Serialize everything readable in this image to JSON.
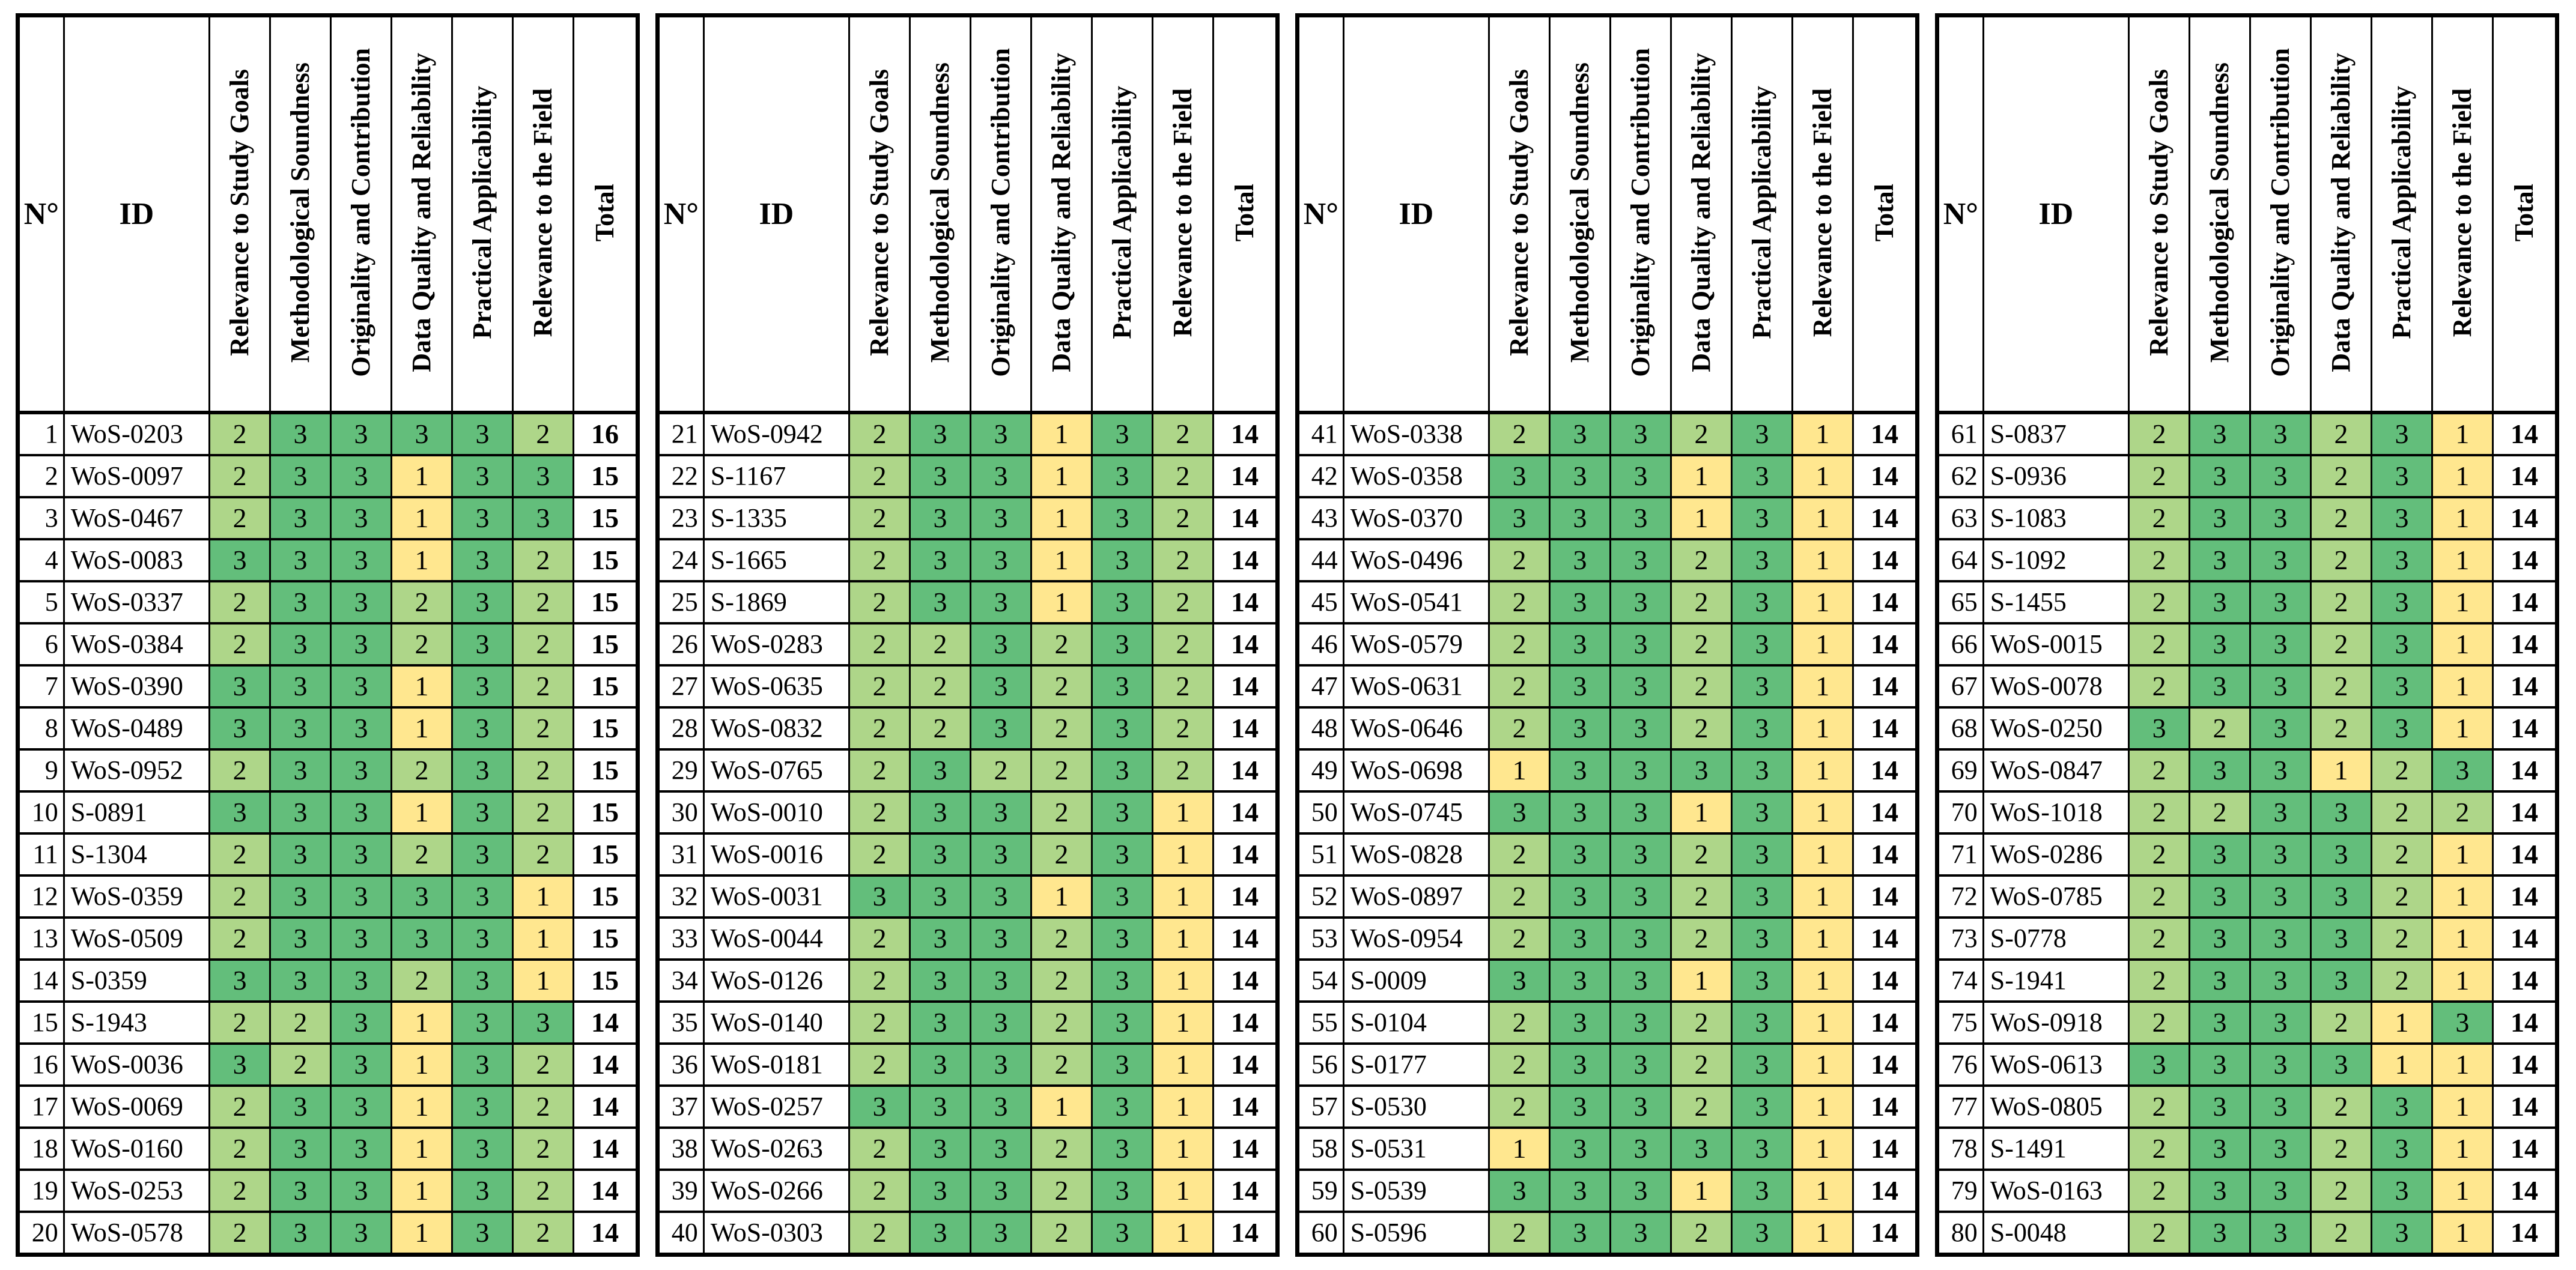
{
  "columns": [
    {
      "key": "n",
      "label": "N°"
    },
    {
      "key": "id",
      "label": "ID"
    },
    {
      "key": "relevance-study-goals",
      "label": "Relevance to Study Goals"
    },
    {
      "key": "methodological-soundness",
      "label": "Methodological Soundness"
    },
    {
      "key": "originality-contribution",
      "label": "Originality and Contribution"
    },
    {
      "key": "data-quality-reliability",
      "label": "Data Quality and Reliability"
    },
    {
      "key": "practical-applicability",
      "label": "Practical Applicability"
    },
    {
      "key": "relevance-field",
      "label": "Relevance to the Field"
    },
    {
      "key": "total",
      "label": "Total"
    }
  ],
  "score_colors": {
    "1": "#FFE78F",
    "2": "#AED689",
    "3": "#63BE7B"
  },
  "tables": [
    {
      "rows": [
        {
          "n": 1,
          "id": "WoS-0203",
          "scores": [
            2,
            3,
            3,
            3,
            3,
            2
          ],
          "total": 16
        },
        {
          "n": 2,
          "id": "WoS-0097",
          "scores": [
            2,
            3,
            3,
            1,
            3,
            3
          ],
          "total": 15
        },
        {
          "n": 3,
          "id": "WoS-0467",
          "scores": [
            2,
            3,
            3,
            1,
            3,
            3
          ],
          "total": 15
        },
        {
          "n": 4,
          "id": "WoS-0083",
          "scores": [
            3,
            3,
            3,
            1,
            3,
            2
          ],
          "total": 15
        },
        {
          "n": 5,
          "id": "WoS-0337",
          "scores": [
            2,
            3,
            3,
            2,
            3,
            2
          ],
          "total": 15
        },
        {
          "n": 6,
          "id": "WoS-0384",
          "scores": [
            2,
            3,
            3,
            2,
            3,
            2
          ],
          "total": 15
        },
        {
          "n": 7,
          "id": "WoS-0390",
          "scores": [
            3,
            3,
            3,
            1,
            3,
            2
          ],
          "total": 15
        },
        {
          "n": 8,
          "id": "WoS-0489",
          "scores": [
            3,
            3,
            3,
            1,
            3,
            2
          ],
          "total": 15
        },
        {
          "n": 9,
          "id": "WoS-0952",
          "scores": [
            2,
            3,
            3,
            2,
            3,
            2
          ],
          "total": 15
        },
        {
          "n": 10,
          "id": "S-0891",
          "scores": [
            3,
            3,
            3,
            1,
            3,
            2
          ],
          "total": 15
        },
        {
          "n": 11,
          "id": "S-1304",
          "scores": [
            2,
            3,
            3,
            2,
            3,
            2
          ],
          "total": 15
        },
        {
          "n": 12,
          "id": "WoS-0359",
          "scores": [
            2,
            3,
            3,
            3,
            3,
            1
          ],
          "total": 15
        },
        {
          "n": 13,
          "id": "WoS-0509",
          "scores": [
            2,
            3,
            3,
            3,
            3,
            1
          ],
          "total": 15
        },
        {
          "n": 14,
          "id": "S-0359",
          "scores": [
            3,
            3,
            3,
            2,
            3,
            1
          ],
          "total": 15
        },
        {
          "n": 15,
          "id": "S-1943",
          "scores": [
            2,
            2,
            3,
            1,
            3,
            3
          ],
          "total": 14
        },
        {
          "n": 16,
          "id": "WoS-0036",
          "scores": [
            3,
            2,
            3,
            1,
            3,
            2
          ],
          "total": 14
        },
        {
          "n": 17,
          "id": "WoS-0069",
          "scores": [
            2,
            3,
            3,
            1,
            3,
            2
          ],
          "total": 14
        },
        {
          "n": 18,
          "id": "WoS-0160",
          "scores": [
            2,
            3,
            3,
            1,
            3,
            2
          ],
          "total": 14
        },
        {
          "n": 19,
          "id": "WoS-0253",
          "scores": [
            2,
            3,
            3,
            1,
            3,
            2
          ],
          "total": 14
        },
        {
          "n": 20,
          "id": "WoS-0578",
          "scores": [
            2,
            3,
            3,
            1,
            3,
            2
          ],
          "total": 14
        }
      ]
    },
    {
      "rows": [
        {
          "n": 21,
          "id": "WoS-0942",
          "scores": [
            2,
            3,
            3,
            1,
            3,
            2
          ],
          "total": 14
        },
        {
          "n": 22,
          "id": "S-1167",
          "scores": [
            2,
            3,
            3,
            1,
            3,
            2
          ],
          "total": 14
        },
        {
          "n": 23,
          "id": "S-1335",
          "scores": [
            2,
            3,
            3,
            1,
            3,
            2
          ],
          "total": 14
        },
        {
          "n": 24,
          "id": "S-1665",
          "scores": [
            2,
            3,
            3,
            1,
            3,
            2
          ],
          "total": 14
        },
        {
          "n": 25,
          "id": "S-1869",
          "scores": [
            2,
            3,
            3,
            1,
            3,
            2
          ],
          "total": 14
        },
        {
          "n": 26,
          "id": "WoS-0283",
          "scores": [
            2,
            2,
            3,
            2,
            3,
            2
          ],
          "total": 14
        },
        {
          "n": 27,
          "id": "WoS-0635",
          "scores": [
            2,
            2,
            3,
            2,
            3,
            2
          ],
          "total": 14
        },
        {
          "n": 28,
          "id": "WoS-0832",
          "scores": [
            2,
            2,
            3,
            2,
            3,
            2
          ],
          "total": 14
        },
        {
          "n": 29,
          "id": "WoS-0765",
          "scores": [
            2,
            3,
            2,
            2,
            3,
            2
          ],
          "total": 14
        },
        {
          "n": 30,
          "id": "WoS-0010",
          "scores": [
            2,
            3,
            3,
            2,
            3,
            1
          ],
          "total": 14
        },
        {
          "n": 31,
          "id": "WoS-0016",
          "scores": [
            2,
            3,
            3,
            2,
            3,
            1
          ],
          "total": 14
        },
        {
          "n": 32,
          "id": "WoS-0031",
          "scores": [
            3,
            3,
            3,
            1,
            3,
            1
          ],
          "total": 14
        },
        {
          "n": 33,
          "id": "WoS-0044",
          "scores": [
            2,
            3,
            3,
            2,
            3,
            1
          ],
          "total": 14
        },
        {
          "n": 34,
          "id": "WoS-0126",
          "scores": [
            2,
            3,
            3,
            2,
            3,
            1
          ],
          "total": 14
        },
        {
          "n": 35,
          "id": "WoS-0140",
          "scores": [
            2,
            3,
            3,
            2,
            3,
            1
          ],
          "total": 14
        },
        {
          "n": 36,
          "id": "WoS-0181",
          "scores": [
            2,
            3,
            3,
            2,
            3,
            1
          ],
          "total": 14
        },
        {
          "n": 37,
          "id": "WoS-0257",
          "scores": [
            3,
            3,
            3,
            1,
            3,
            1
          ],
          "total": 14
        },
        {
          "n": 38,
          "id": "WoS-0263",
          "scores": [
            2,
            3,
            3,
            2,
            3,
            1
          ],
          "total": 14
        },
        {
          "n": 39,
          "id": "WoS-0266",
          "scores": [
            2,
            3,
            3,
            2,
            3,
            1
          ],
          "total": 14
        },
        {
          "n": 40,
          "id": "WoS-0303",
          "scores": [
            2,
            3,
            3,
            2,
            3,
            1
          ],
          "total": 14
        }
      ]
    },
    {
      "rows": [
        {
          "n": 41,
          "id": "WoS-0338",
          "scores": [
            2,
            3,
            3,
            2,
            3,
            1
          ],
          "total": 14
        },
        {
          "n": 42,
          "id": "WoS-0358",
          "scores": [
            3,
            3,
            3,
            1,
            3,
            1
          ],
          "total": 14
        },
        {
          "n": 43,
          "id": "WoS-0370",
          "scores": [
            3,
            3,
            3,
            1,
            3,
            1
          ],
          "total": 14
        },
        {
          "n": 44,
          "id": "WoS-0496",
          "scores": [
            2,
            3,
            3,
            2,
            3,
            1
          ],
          "total": 14
        },
        {
          "n": 45,
          "id": "WoS-0541",
          "scores": [
            2,
            3,
            3,
            2,
            3,
            1
          ],
          "total": 14
        },
        {
          "n": 46,
          "id": "WoS-0579",
          "scores": [
            2,
            3,
            3,
            2,
            3,
            1
          ],
          "total": 14
        },
        {
          "n": 47,
          "id": "WoS-0631",
          "scores": [
            2,
            3,
            3,
            2,
            3,
            1
          ],
          "total": 14
        },
        {
          "n": 48,
          "id": "WoS-0646",
          "scores": [
            2,
            3,
            3,
            2,
            3,
            1
          ],
          "total": 14
        },
        {
          "n": 49,
          "id": "WoS-0698",
          "scores": [
            1,
            3,
            3,
            3,
            3,
            1
          ],
          "total": 14
        },
        {
          "n": 50,
          "id": "WoS-0745",
          "scores": [
            3,
            3,
            3,
            1,
            3,
            1
          ],
          "total": 14
        },
        {
          "n": 51,
          "id": "WoS-0828",
          "scores": [
            2,
            3,
            3,
            2,
            3,
            1
          ],
          "total": 14
        },
        {
          "n": 52,
          "id": "WoS-0897",
          "scores": [
            2,
            3,
            3,
            2,
            3,
            1
          ],
          "total": 14
        },
        {
          "n": 53,
          "id": "WoS-0954",
          "scores": [
            2,
            3,
            3,
            2,
            3,
            1
          ],
          "total": 14
        },
        {
          "n": 54,
          "id": "S-0009",
          "scores": [
            3,
            3,
            3,
            1,
            3,
            1
          ],
          "total": 14
        },
        {
          "n": 55,
          "id": "S-0104",
          "scores": [
            2,
            3,
            3,
            2,
            3,
            1
          ],
          "total": 14
        },
        {
          "n": 56,
          "id": "S-0177",
          "scores": [
            2,
            3,
            3,
            2,
            3,
            1
          ],
          "total": 14
        },
        {
          "n": 57,
          "id": "S-0530",
          "scores": [
            2,
            3,
            3,
            2,
            3,
            1
          ],
          "total": 14
        },
        {
          "n": 58,
          "id": "S-0531",
          "scores": [
            1,
            3,
            3,
            3,
            3,
            1
          ],
          "total": 14
        },
        {
          "n": 59,
          "id": "S-0539",
          "scores": [
            3,
            3,
            3,
            1,
            3,
            1
          ],
          "total": 14
        },
        {
          "n": 60,
          "id": "S-0596",
          "scores": [
            2,
            3,
            3,
            2,
            3,
            1
          ],
          "total": 14
        }
      ]
    },
    {
      "rows": [
        {
          "n": 61,
          "id": "S-0837",
          "scores": [
            2,
            3,
            3,
            2,
            3,
            1
          ],
          "total": 14
        },
        {
          "n": 62,
          "id": "S-0936",
          "scores": [
            2,
            3,
            3,
            2,
            3,
            1
          ],
          "total": 14
        },
        {
          "n": 63,
          "id": "S-1083",
          "scores": [
            2,
            3,
            3,
            2,
            3,
            1
          ],
          "total": 14
        },
        {
          "n": 64,
          "id": "S-1092",
          "scores": [
            2,
            3,
            3,
            2,
            3,
            1
          ],
          "total": 14
        },
        {
          "n": 65,
          "id": "S-1455",
          "scores": [
            2,
            3,
            3,
            2,
            3,
            1
          ],
          "total": 14
        },
        {
          "n": 66,
          "id": "WoS-0015",
          "scores": [
            2,
            3,
            3,
            2,
            3,
            1
          ],
          "total": 14
        },
        {
          "n": 67,
          "id": "WoS-0078",
          "scores": [
            2,
            3,
            3,
            2,
            3,
            1
          ],
          "total": 14
        },
        {
          "n": 68,
          "id": "WoS-0250",
          "scores": [
            3,
            2,
            3,
            2,
            3,
            1
          ],
          "total": 14
        },
        {
          "n": 69,
          "id": "WoS-0847",
          "scores": [
            2,
            3,
            3,
            1,
            2,
            3
          ],
          "total": 14
        },
        {
          "n": 70,
          "id": "WoS-1018",
          "scores": [
            2,
            2,
            3,
            3,
            2,
            2
          ],
          "total": 14
        },
        {
          "n": 71,
          "id": "WoS-0286",
          "scores": [
            2,
            3,
            3,
            3,
            2,
            1
          ],
          "total": 14
        },
        {
          "n": 72,
          "id": "WoS-0785",
          "scores": [
            2,
            3,
            3,
            3,
            2,
            1
          ],
          "total": 14
        },
        {
          "n": 73,
          "id": "S-0778",
          "scores": [
            2,
            3,
            3,
            3,
            2,
            1
          ],
          "total": 14
        },
        {
          "n": 74,
          "id": "S-1941",
          "scores": [
            2,
            3,
            3,
            3,
            2,
            1
          ],
          "total": 14
        },
        {
          "n": 75,
          "id": "WoS-0918",
          "scores": [
            2,
            3,
            3,
            2,
            1,
            3
          ],
          "total": 14
        },
        {
          "n": 76,
          "id": "WoS-0613",
          "scores": [
            3,
            3,
            3,
            3,
            1,
            1
          ],
          "total": 14
        },
        {
          "n": 77,
          "id": "WoS-0805",
          "scores": [
            2,
            3,
            3,
            2,
            3,
            1
          ],
          "total": 14
        },
        {
          "n": 78,
          "id": "S-1491",
          "scores": [
            2,
            3,
            3,
            2,
            3,
            1
          ],
          "total": 14
        },
        {
          "n": 79,
          "id": "WoS-0163",
          "scores": [
            2,
            3,
            3,
            2,
            3,
            1
          ],
          "total": 14
        },
        {
          "n": 80,
          "id": "S-0048",
          "scores": [
            2,
            3,
            3,
            2,
            3,
            1
          ],
          "total": 14
        }
      ]
    }
  ]
}
